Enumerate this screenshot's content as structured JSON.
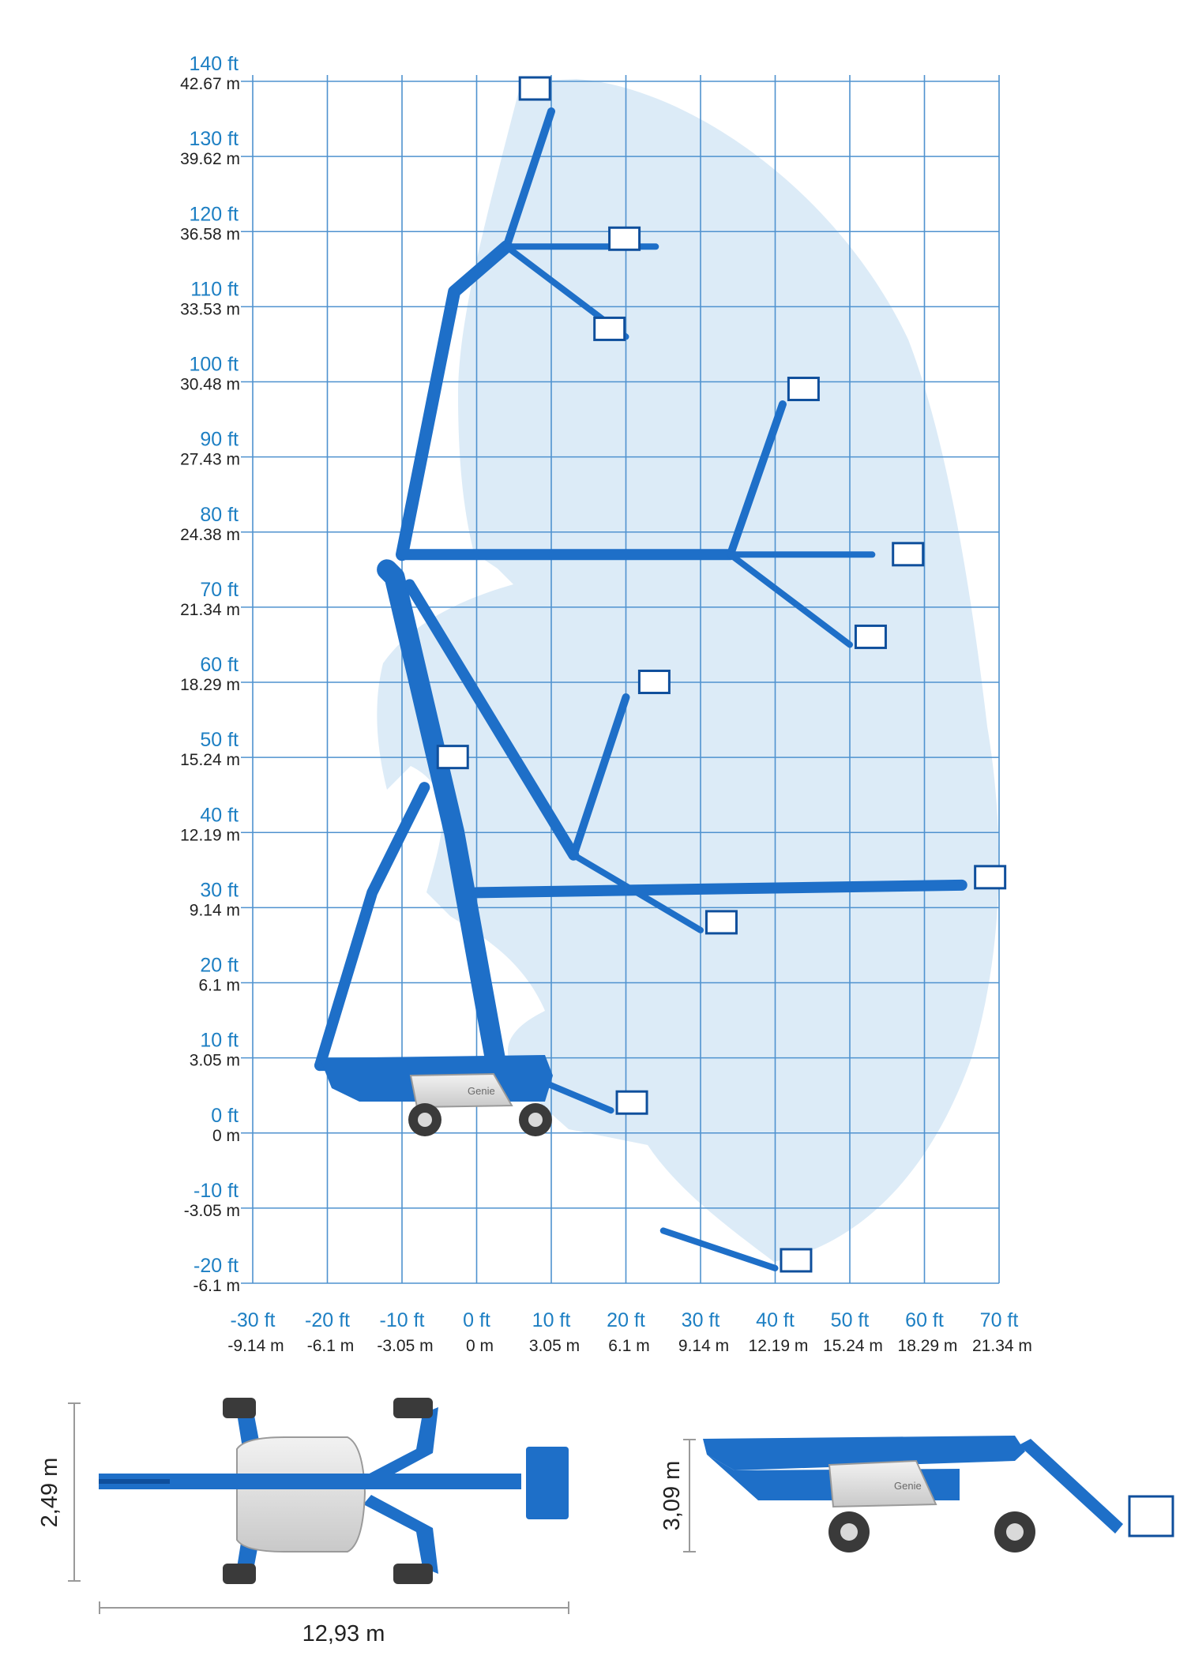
{
  "colors": {
    "grid": "#4f92cf",
    "envelope": "#dcebf7",
    "machine": "#1e6fc8",
    "machine_dark": "#0f4f9c",
    "body_grey": "#dcdcdc",
    "tire": "#3a3a3a",
    "ft_text": "#1d7fc3",
    "m_text": "#222222"
  },
  "chart_data": {
    "type": "diagram",
    "description_labels": {
      "y_ticks": [
        {
          "ft": "140 ft",
          "m": "42.67 m",
          "value": 140
        },
        {
          "ft": "130 ft",
          "m": "39.62 m",
          "value": 130
        },
        {
          "ft": "120 ft",
          "m": "36.58 m",
          "value": 120
        },
        {
          "ft": "110 ft",
          "m": "33.53 m",
          "value": 110
        },
        {
          "ft": "100 ft",
          "m": "30.48 m",
          "value": 100
        },
        {
          "ft": "90 ft",
          "m": "27.43 m",
          "value": 90
        },
        {
          "ft": "80 ft",
          "m": "24.38 m",
          "value": 80
        },
        {
          "ft": "70 ft",
          "m": "21.34 m",
          "value": 70
        },
        {
          "ft": "60 ft",
          "m": "18.29 m",
          "value": 60
        },
        {
          "ft": "50 ft",
          "m": "15.24 m",
          "value": 50
        },
        {
          "ft": "40 ft",
          "m": "12.19 m",
          "value": 40
        },
        {
          "ft": "30 ft",
          "m": "9.14 m",
          "value": 30
        },
        {
          "ft": "20 ft",
          "m": "6.1 m",
          "value": 20
        },
        {
          "ft": "10 ft",
          "m": "3.05 m",
          "value": 10
        },
        {
          "ft": "0 ft",
          "m": "0 m",
          "value": 0
        },
        {
          "ft": "-10 ft",
          "m": "-3.05 m",
          "value": -10
        },
        {
          "ft": "-20 ft",
          "m": "-6.1 m",
          "value": -20
        }
      ],
      "x_ticks": [
        {
          "ft": "-30 ft",
          "m": "-9.14 m",
          "value": -30
        },
        {
          "ft": "-20 ft",
          "m": "-6.1 m",
          "value": -20
        },
        {
          "ft": "-10 ft",
          "m": "-3.05 m",
          "value": -10
        },
        {
          "ft": "0 ft",
          "m": "0 m",
          "value": 0
        },
        {
          "ft": "10 ft",
          "m": "3.05 m",
          "value": 10
        },
        {
          "ft": "20 ft",
          "m": "6.1 m",
          "value": 20
        },
        {
          "ft": "30 ft",
          "m": "9.14 m",
          "value": 30
        },
        {
          "ft": "40 ft",
          "m": "12.19 m",
          "value": 40
        },
        {
          "ft": "50 ft",
          "m": "15.24 m",
          "value": 50
        },
        {
          "ft": "60 ft",
          "m": "18.29 m",
          "value": 60
        },
        {
          "ft": "70 ft",
          "m": "21.34 m",
          "value": 70
        }
      ],
      "x_range": [
        -30,
        70
      ],
      "y_range": [
        -20,
        140
      ]
    },
    "working_envelope": {
      "max_height_ft": 140,
      "max_outreach_ft": 70,
      "below_grade_ft": -20
    },
    "boom_positions": [
      {
        "name": "max-height",
        "platform": [
          6,
          138
        ]
      },
      {
        "name": "upper-horizontal",
        "platform": [
          18,
          118
        ]
      },
      {
        "name": "upper-down",
        "platform": [
          16,
          106
        ]
      },
      {
        "name": "mid-up",
        "platform": [
          42,
          98
        ]
      },
      {
        "name": "mid-horizontal",
        "platform": [
          56,
          76
        ]
      },
      {
        "name": "mid-down",
        "platform": [
          51,
          65
        ]
      },
      {
        "name": "low-up",
        "platform": [
          22,
          59
        ]
      },
      {
        "name": "low-horizontal",
        "platform": [
          67,
          33
        ]
      },
      {
        "name": "low-down",
        "platform": [
          31,
          27
        ]
      },
      {
        "name": "vertical-tower",
        "platform": [
          -5,
          49
        ]
      },
      {
        "name": "stowed-down",
        "platform": [
          19,
          3
        ]
      },
      {
        "name": "below-grade",
        "platform": [
          41,
          -18
        ]
      }
    ]
  },
  "dimensions": {
    "width": "2,49 m",
    "length": "12,93 m",
    "height": "3,09 m"
  },
  "brand": "Genie"
}
